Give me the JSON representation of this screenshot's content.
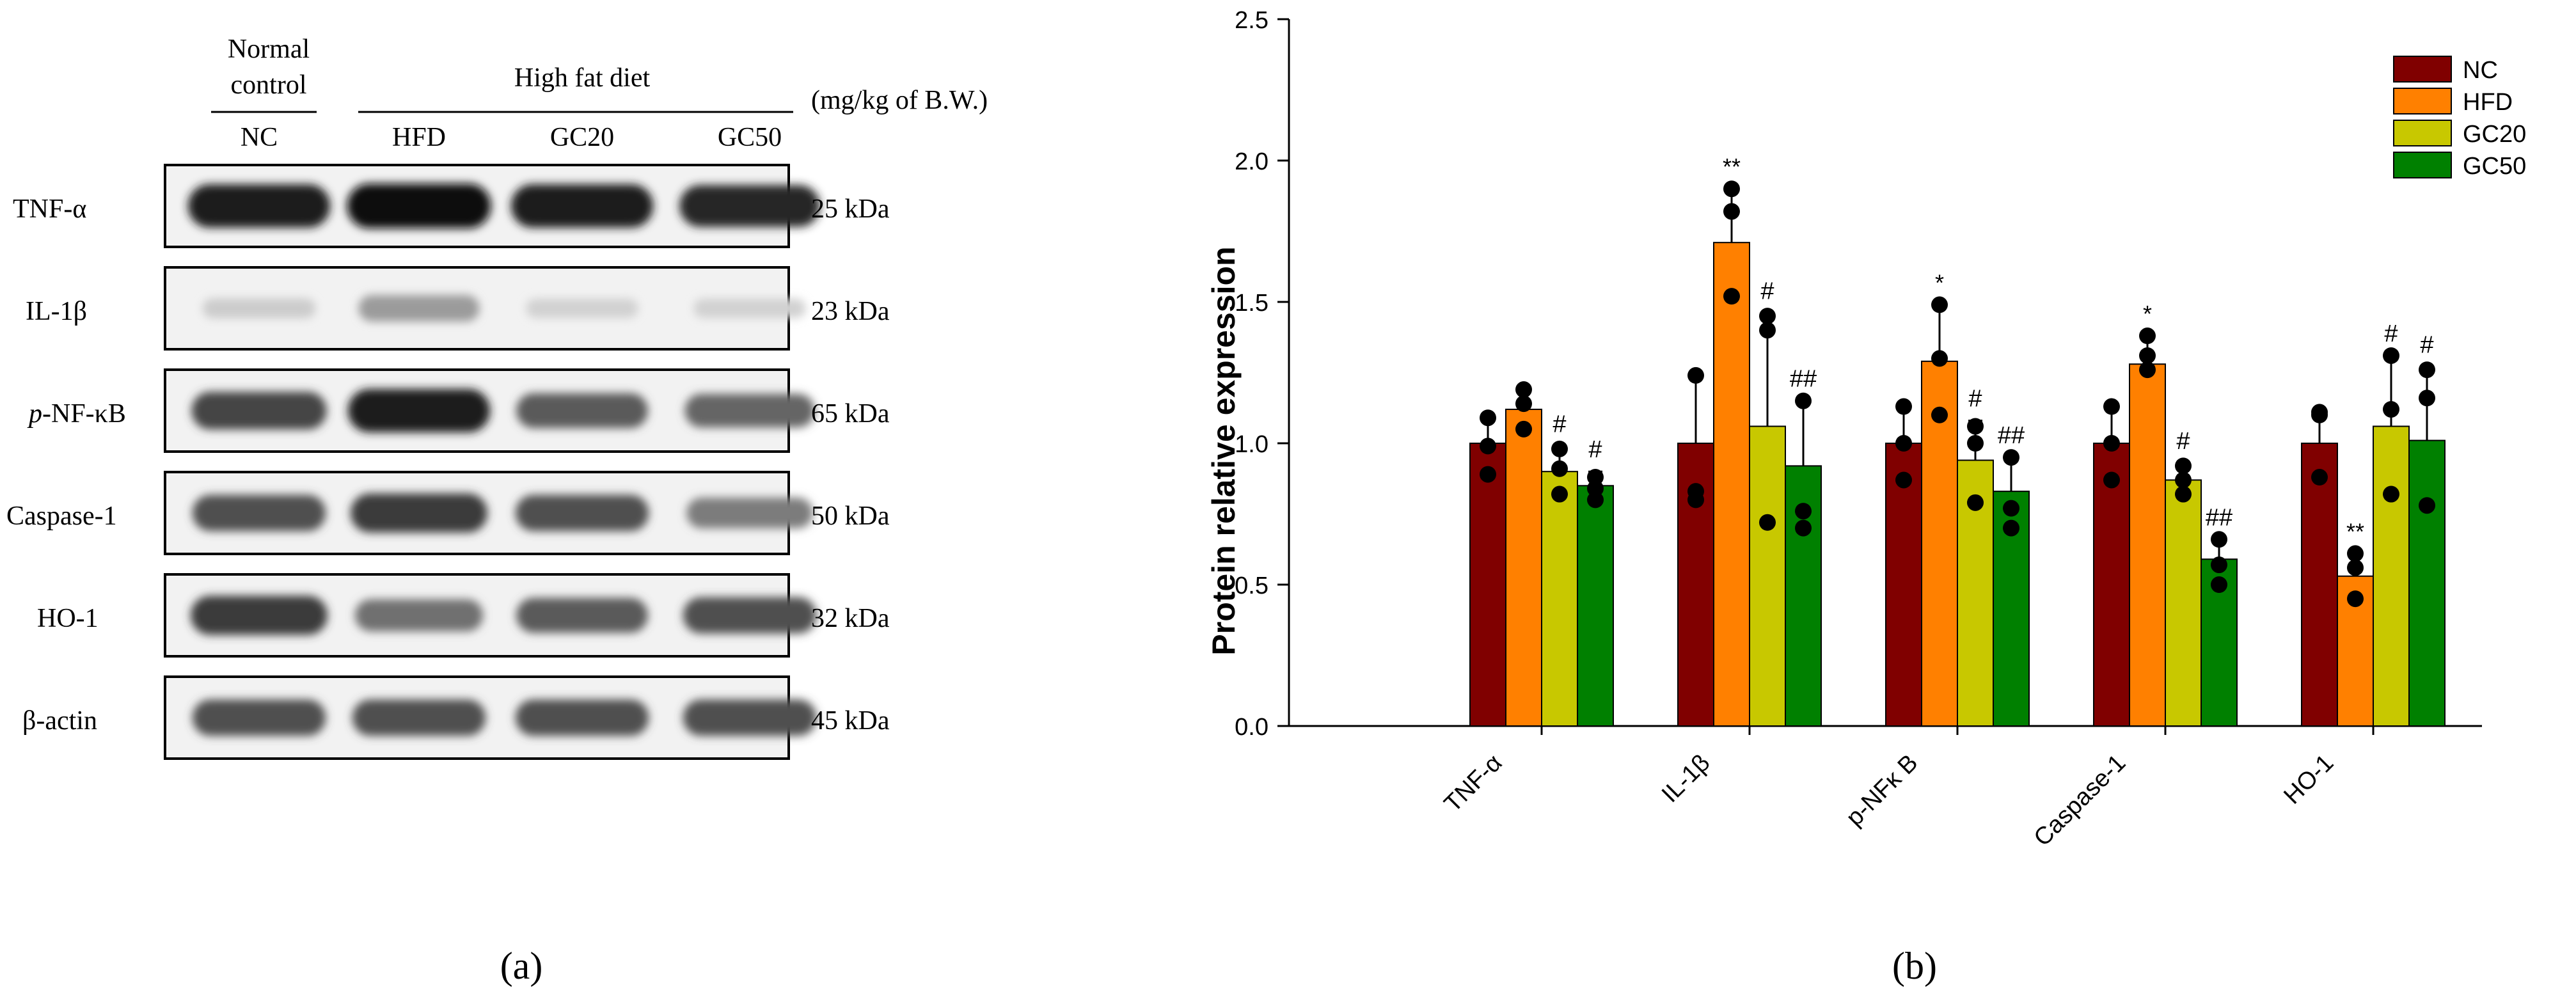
{
  "panel_a": {
    "panel_label": "(a)",
    "header": {
      "normal_control_line1": "Normal",
      "normal_control_line2": "control",
      "high_fat_diet": "High fat diet",
      "unit": "(mg/kg of B.W.)",
      "lanes": [
        "NC",
        "HFD",
        "GC20",
        "GC50"
      ]
    },
    "blots": [
      {
        "label": "TNF-α",
        "size": "25 kDa",
        "intensity": [
          0.95,
          1.0,
          0.95,
          0.9
        ]
      },
      {
        "label": "IL-1β",
        "size": "23 kDa",
        "intensity": [
          0.12,
          0.35,
          0.1,
          0.1
        ]
      },
      {
        "label_prefix": "p",
        "label_rest": "-NF-κB",
        "size": "65 kDa",
        "intensity": [
          0.75,
          0.95,
          0.65,
          0.6
        ]
      },
      {
        "label": "Caspase-1",
        "size": "50 kDa",
        "intensity": [
          0.7,
          0.8,
          0.7,
          0.5
        ]
      },
      {
        "label": "HO-1",
        "size": "32 kDa",
        "intensity": [
          0.8,
          0.55,
          0.65,
          0.7
        ]
      },
      {
        "label": "β-actin",
        "size": "45 kDa",
        "intensity": [
          0.7,
          0.7,
          0.7,
          0.7
        ]
      }
    ]
  },
  "chart_data": {
    "type": "bar",
    "panel_label": "(b)",
    "title": "",
    "xlabel": "",
    "ylabel": "Protein relative expression",
    "ylim": [
      0,
      2.5
    ],
    "yticks": [
      "0.0",
      "0.5",
      "1.0",
      "1.5",
      "2.0",
      "2.5"
    ],
    "grid": false,
    "legend_position": "top-right",
    "categories": [
      "TNF-α",
      "IL-1β",
      "p-NFκ B",
      "Caspase-1",
      "HO-1"
    ],
    "series": [
      {
        "name": "NC",
        "color": "#800000",
        "values": [
          1.0,
          1.0,
          1.0,
          1.0,
          1.0
        ],
        "errors": [
          0.09,
          0.24,
          0.13,
          0.13,
          0.12
        ],
        "points": [
          [
            0.89,
            0.99,
            1.09
          ],
          [
            0.8,
            0.83,
            1.24
          ],
          [
            0.87,
            1.0,
            1.13
          ],
          [
            0.87,
            1.0,
            1.13
          ],
          [
            0.88,
            1.1,
            1.11
          ]
        ],
        "annotations": [
          "",
          "",
          "",
          "",
          ""
        ]
      },
      {
        "name": "HFD",
        "color": "#ff8000",
        "values": [
          1.12,
          1.71,
          1.29,
          1.28,
          0.53
        ],
        "errors": [
          0.07,
          0.19,
          0.2,
          0.1,
          0.07
        ],
        "points": [
          [
            1.05,
            1.14,
            1.19
          ],
          [
            1.52,
            1.82,
            1.9
          ],
          [
            1.1,
            1.3,
            1.49
          ],
          [
            1.26,
            1.31,
            1.38
          ],
          [
            0.45,
            0.56,
            0.61
          ]
        ],
        "annotations": [
          "",
          "**",
          "*",
          "*",
          "**"
        ]
      },
      {
        "name": "GC20",
        "color": "#c8c800",
        "values": [
          0.9,
          1.06,
          0.94,
          0.87,
          1.06
        ],
        "errors": [
          0.09,
          0.4,
          0.14,
          0.06,
          0.25
        ],
        "points": [
          [
            0.82,
            0.91,
            0.98
          ],
          [
            0.72,
            1.4,
            1.45
          ],
          [
            0.79,
            1.0,
            1.06
          ],
          [
            0.82,
            0.87,
            0.92
          ],
          [
            0.82,
            1.12,
            1.31
          ]
        ],
        "annotations": [
          "#",
          "#",
          "#",
          "#",
          "#"
        ]
      },
      {
        "name": "GC50",
        "color": "#008000",
        "values": [
          0.85,
          0.92,
          0.83,
          0.59,
          1.01
        ],
        "errors": [
          0.05,
          0.23,
          0.12,
          0.07,
          0.26
        ],
        "points": [
          [
            0.8,
            0.84,
            0.88
          ],
          [
            0.7,
            0.76,
            1.15
          ],
          [
            0.7,
            0.77,
            0.95
          ],
          [
            0.5,
            0.57,
            0.66
          ],
          [
            0.78,
            1.16,
            1.26
          ]
        ],
        "annotations": [
          "#",
          "##",
          "##",
          "##",
          "#"
        ]
      }
    ]
  }
}
